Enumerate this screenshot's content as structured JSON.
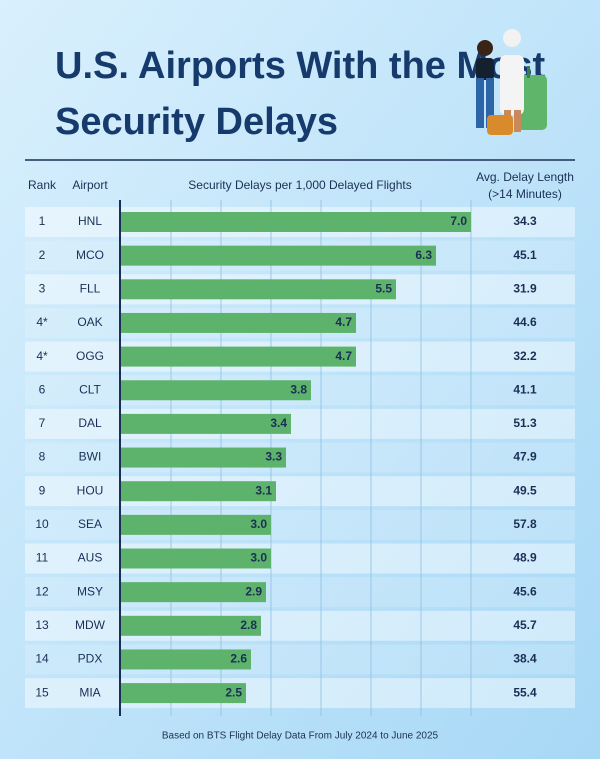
{
  "chart_data": {
    "type": "bar",
    "title": "U.S. Airports With the Most Security Delays",
    "headers": {
      "rank": "Rank",
      "airport": "Airport",
      "value": "Security Delays per 1,000 Delayed Flights",
      "avg_delay": [
        "Avg. Delay Length",
        "(>14 Minutes)"
      ]
    },
    "ranks": [
      "1",
      "2",
      "3",
      "4*",
      "4*",
      "6",
      "7",
      "8",
      "9",
      "10",
      "11",
      "12",
      "13",
      "14",
      "15"
    ],
    "categories": [
      "HNL",
      "MCO",
      "FLL",
      "OAK",
      "OGG",
      "CLT",
      "DAL",
      "BWI",
      "HOU",
      "SEA",
      "AUS",
      "MSY",
      "MDW",
      "PDX",
      "MIA"
    ],
    "values": [
      7.0,
      6.3,
      5.5,
      4.7,
      4.7,
      3.8,
      3.4,
      3.3,
      3.1,
      3.0,
      3.0,
      2.9,
      2.8,
      2.6,
      2.5
    ],
    "value_labels": [
      "7.0",
      "6.3",
      "5.5",
      "4.7",
      "4.7",
      "3.8",
      "3.4",
      "3.3",
      "3.1",
      "3.0",
      "3.0",
      "2.9",
      "2.8",
      "2.6",
      "2.5"
    ],
    "avg_delay": [
      34.3,
      45.1,
      31.9,
      44.6,
      32.2,
      41.1,
      51.3,
      47.9,
      49.5,
      57.8,
      48.9,
      45.6,
      45.7,
      38.4,
      55.4
    ],
    "color": "#5db36c",
    "xlim": [
      0,
      7
    ],
    "xticks": [
      1,
      2,
      3,
      4,
      5,
      6,
      7
    ],
    "grid": true,
    "footnote": "Based on BTS Flight Delay Data From July 2024 to June 2025"
  }
}
